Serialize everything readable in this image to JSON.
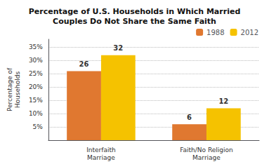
{
  "chart_data": {
    "type": "bar",
    "title": "Percentage of U.S. Households in Which Married\nCouples Do Not Share the Same Faith",
    "categories": [
      "Interfaith\nMarriage",
      "Faith/No Religion\nMarriage"
    ],
    "series": [
      {
        "name": "1988",
        "color": "#E07830",
        "values": [
          26,
          6
        ]
      },
      {
        "name": "2012",
        "color": "#F5C200",
        "values": [
          32,
          12
        ]
      }
    ],
    "ylabel": "Percentage of\nHouseholds",
    "ylim": [
      0,
      38
    ],
    "yticks": [
      {
        "value": 5,
        "label": "5%"
      },
      {
        "value": 10,
        "label": "10%"
      },
      {
        "value": 15,
        "label": "15%"
      },
      {
        "value": 20,
        "label": "20%"
      },
      {
        "value": 25,
        "label": "25%"
      },
      {
        "value": 30,
        "label": "30%"
      },
      {
        "value": 35,
        "label": "35%"
      }
    ],
    "grid": true,
    "legend": "upper right",
    "data_labels": true
  }
}
